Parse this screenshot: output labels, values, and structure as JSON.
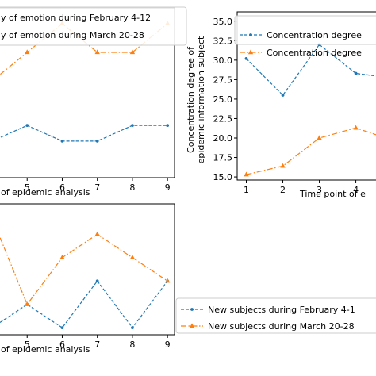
{
  "colors": {
    "series_blue": "#1f77b4",
    "series_orange": "#ff7f0e",
    "legend_border": "#cccccc"
  },
  "chart_data": [
    {
      "type": "line",
      "id": "top-left",
      "title": "",
      "xlabel": "of epidemic analysis",
      "ylabel": "",
      "x_ticks": [
        "5",
        "6",
        "7",
        "8",
        "9"
      ],
      "y_ticks": [],
      "grid": false,
      "legend_placement": "top-left",
      "series": [
        {
          "name": "y of emotion during February 4-12",
          "color": "#1f77b4",
          "marker": "point",
          "linestyle": "dashed",
          "x": [
            4,
            5,
            6,
            7,
            8,
            9
          ],
          "y": [
            1.4,
            2.0,
            1.4,
            1.4,
            2.0,
            2.0
          ]
        },
        {
          "name": "y of emotion during March 20-28",
          "color": "#ff7f0e",
          "marker": "triangle",
          "linestyle": "dashdot",
          "x": [
            4,
            5,
            6,
            7,
            8,
            9
          ],
          "y": [
            3.7,
            4.8,
            5.9,
            4.8,
            4.8,
            5.9
          ]
        }
      ]
    },
    {
      "type": "line",
      "id": "top-right",
      "title": "",
      "xlabel": "Time point of e",
      "ylabel": "Concentration degree of epidemic information subject",
      "x_ticks": [
        "1",
        "2",
        "3",
        "4"
      ],
      "y_ticks": [
        "15.0",
        "17.5",
        "20.0",
        "22.5",
        "25.0",
        "27.5",
        "30.0",
        "32.5",
        "35.0"
      ],
      "ylim": [
        14.6,
        36.2
      ],
      "grid": false,
      "legend_placement": "top-right",
      "series": [
        {
          "name": "Concentration degree",
          "color": "#1f77b4",
          "marker": "point",
          "linestyle": "dashed",
          "x": [
            1,
            2,
            3,
            4,
            5
          ],
          "y": [
            30.2,
            25.5,
            32.0,
            28.3,
            27.7
          ]
        },
        {
          "name": "Concentration degree",
          "color": "#ff7f0e",
          "marker": "triangle",
          "linestyle": "dashdot",
          "x": [
            1,
            2,
            3,
            4,
            5
          ],
          "y": [
            15.3,
            16.4,
            20.0,
            21.3,
            19.7
          ]
        }
      ]
    },
    {
      "type": "line",
      "id": "bottom-left",
      "title": "",
      "xlabel": "of epidemic analysis",
      "ylabel": "",
      "x_ticks": [
        "5",
        "6",
        "7",
        "8",
        "9"
      ],
      "y_ticks": [],
      "grid": false,
      "legend_placement": "outside-right",
      "series": [
        {
          "name": "New subjects during February 4-1",
          "color": "#1f77b4",
          "marker": "point",
          "linestyle": "dashed",
          "x": [
            4,
            5,
            6,
            7,
            8,
            9
          ],
          "y": [
            0.3,
            1.3,
            0.3,
            2.3,
            0.3,
            2.3
          ]
        },
        {
          "name": "New subjects during March 20-28",
          "color": "#ff7f0e",
          "marker": "triangle",
          "linestyle": "dashdot",
          "x": [
            4,
            5,
            6,
            7,
            8,
            9
          ],
          "y": [
            5.0,
            1.3,
            3.3,
            4.3,
            3.3,
            2.3
          ]
        }
      ]
    }
  ]
}
